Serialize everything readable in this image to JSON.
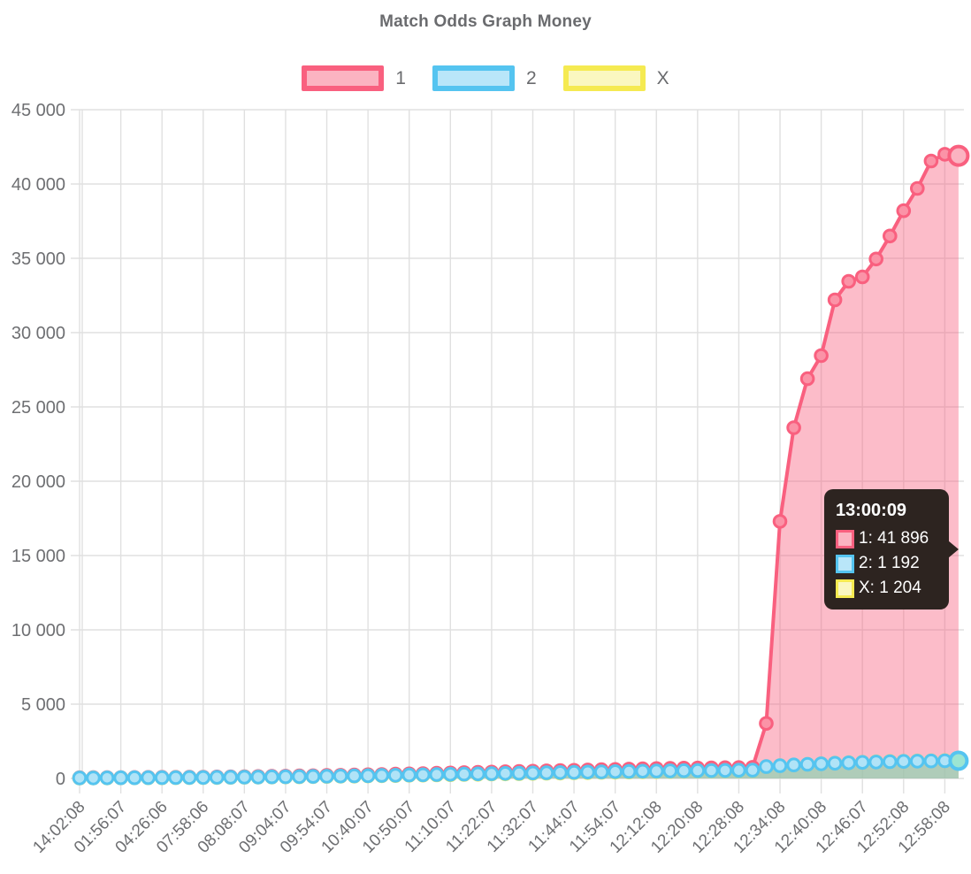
{
  "title": "Match Odds Graph Money",
  "legend": [
    {
      "label": "1"
    },
    {
      "label": "2"
    },
    {
      "label": "X"
    }
  ],
  "tooltip": {
    "time": "13:00:09",
    "rows": [
      {
        "series": "1",
        "text": "1: 41 896"
      },
      {
        "series": "2",
        "text": "2: 1 192"
      },
      {
        "series": "X",
        "text": "X: 1 204"
      }
    ]
  },
  "colors": {
    "title_text": "#6a6b6e",
    "axis_text": "#6e6f72",
    "grid": "#e0e0e0",
    "tooltip_bg": "#2d2420",
    "tooltip_text": "#ffffff"
  },
  "chart_data": {
    "type": "area",
    "title": "Match Odds Graph Money",
    "xlabel": "",
    "ylabel": "",
    "ylim": [
      0,
      45000
    ],
    "y_tick_step": 5000,
    "grid": true,
    "legend_position": "top",
    "points_per_x_label": 3,
    "x_tick_labels": [
      "14:02:08",
      "01:56:07",
      "04:26:06",
      "07:58:06",
      "08:08:07",
      "09:04:07",
      "09:54:07",
      "10:40:07",
      "10:50:07",
      "11:10:07",
      "11:22:07",
      "11:32:07",
      "11:44:07",
      "11:54:07",
      "12:12:08",
      "12:20:08",
      "12:28:08",
      "12:34:08",
      "12:40:08",
      "12:46:07",
      "12:52:08",
      "12:58:08"
    ],
    "hovered_point": {
      "time": "13:00:09",
      "values": {
        "1": 41896,
        "2": 1192,
        "X": 1204
      }
    },
    "series": [
      {
        "name": "1",
        "color": "#f9607f",
        "marker_fill": "#fb93a7",
        "light_fill": "#fbb3c1",
        "area_fill": "rgba(249,96,127,0.42)",
        "values": [
          50,
          55,
          60,
          60,
          65,
          70,
          75,
          80,
          85,
          90,
          100,
          110,
          120,
          130,
          140,
          155,
          170,
          185,
          200,
          215,
          230,
          250,
          270,
          290,
          310,
          330,
          350,
          370,
          390,
          410,
          430,
          450,
          470,
          490,
          510,
          530,
          550,
          570,
          590,
          610,
          630,
          650,
          665,
          680,
          695,
          705,
          715,
          725,
          735,
          750,
          3700,
          17300,
          23600,
          26900,
          28450,
          32200,
          33450,
          33750,
          34950,
          36500,
          38200,
          39700,
          41550,
          42000,
          41896
        ]
      },
      {
        "name": "2",
        "color": "#55c4f0",
        "marker_fill": "#b0e3f7",
        "light_fill": "#b9e6f9",
        "area_fill": "rgba(85,196,240,0.45)",
        "values": [
          35,
          38,
          42,
          45,
          48,
          52,
          56,
          60,
          64,
          68,
          75,
          82,
          90,
          97,
          105,
          115,
          127,
          138,
          150,
          161,
          172,
          187,
          202,
          217,
          232,
          247,
          262,
          277,
          292,
          307,
          322,
          337,
          352,
          367,
          382,
          397,
          412,
          427,
          442,
          457,
          472,
          487,
          499,
          510,
          521,
          529,
          536,
          544,
          551,
          560,
          800,
          860,
          910,
          950,
          990,
          1025,
          1055,
          1085,
          1110,
          1130,
          1150,
          1168,
          1180,
          1188,
          1192
        ]
      },
      {
        "name": "X",
        "color": "#f5ea51",
        "marker_fill": "#f8f3a6",
        "light_fill": "#faf7c0",
        "area_fill": "rgba(245,234,81,0.5)",
        "values": [
          30,
          33,
          36,
          39,
          42,
          45,
          49,
          53,
          57,
          61,
          67,
          74,
          81,
          88,
          95,
          104,
          115,
          125,
          136,
          146,
          156,
          170,
          184,
          198,
          212,
          226,
          240,
          254,
          268,
          282,
          296,
          310,
          324,
          338,
          352,
          366,
          380,
          394,
          408,
          422,
          436,
          450,
          461,
          472,
          483,
          491,
          498,
          506,
          513,
          522,
          790,
          855,
          905,
          948,
          990,
          1028,
          1060,
          1092,
          1118,
          1140,
          1162,
          1180,
          1192,
          1200,
          1204
        ]
      }
    ],
    "end_marker_2_inner_fill": "#9ce5d2"
  }
}
